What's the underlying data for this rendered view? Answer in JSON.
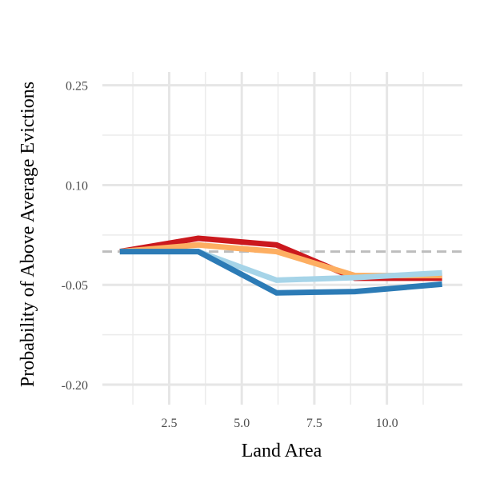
{
  "chart_data": {
    "type": "line",
    "title": "",
    "xlabel": "Land Area",
    "ylabel": "Probability of Above Average Evictions",
    "xlim": [
      0.2,
      12.6
    ],
    "ylim": [
      -0.23,
      0.27
    ],
    "x_ticks": [
      {
        "value": 2.5,
        "label": "2.5"
      },
      {
        "value": 5.0,
        "label": "5.0"
      },
      {
        "value": 7.5,
        "label": "7.5"
      },
      {
        "value": 10.0,
        "label": "10.0"
      }
    ],
    "y_ticks": [
      {
        "value": 0.25,
        "label": "0.25"
      },
      {
        "value": 0.1,
        "label": "0.10"
      },
      {
        "value": -0.05,
        "label": "-0.05"
      },
      {
        "value": -0.2,
        "label": "-0.20"
      }
    ],
    "reference_line": {
      "y": 0.0,
      "style": "dashed",
      "color": "#bdbdbd"
    },
    "grid": true,
    "legend": "none",
    "series": [
      {
        "name": "red",
        "color": "#cb181d",
        "x": [
          0.8,
          3.5,
          6.2,
          8.9,
          11.9
        ],
        "values": [
          0.0,
          0.02,
          0.01,
          -0.04,
          -0.04
        ]
      },
      {
        "name": "orange",
        "color": "#fdae61",
        "x": [
          0.8,
          3.5,
          6.2,
          8.9,
          11.9
        ],
        "values": [
          0.0,
          0.01,
          0.0,
          -0.036,
          -0.036
        ]
      },
      {
        "name": "light-blue",
        "color": "#a6d4e8",
        "x": [
          0.8,
          3.5,
          6.2,
          8.9,
          11.9
        ],
        "values": [
          0.0,
          0.0,
          -0.043,
          -0.039,
          -0.032
        ]
      },
      {
        "name": "blue",
        "color": "#2c7bb6",
        "x": [
          0.8,
          3.5,
          6.2,
          8.9,
          11.9
        ],
        "values": [
          0.0,
          0.0,
          -0.062,
          -0.06,
          -0.049
        ]
      }
    ]
  }
}
